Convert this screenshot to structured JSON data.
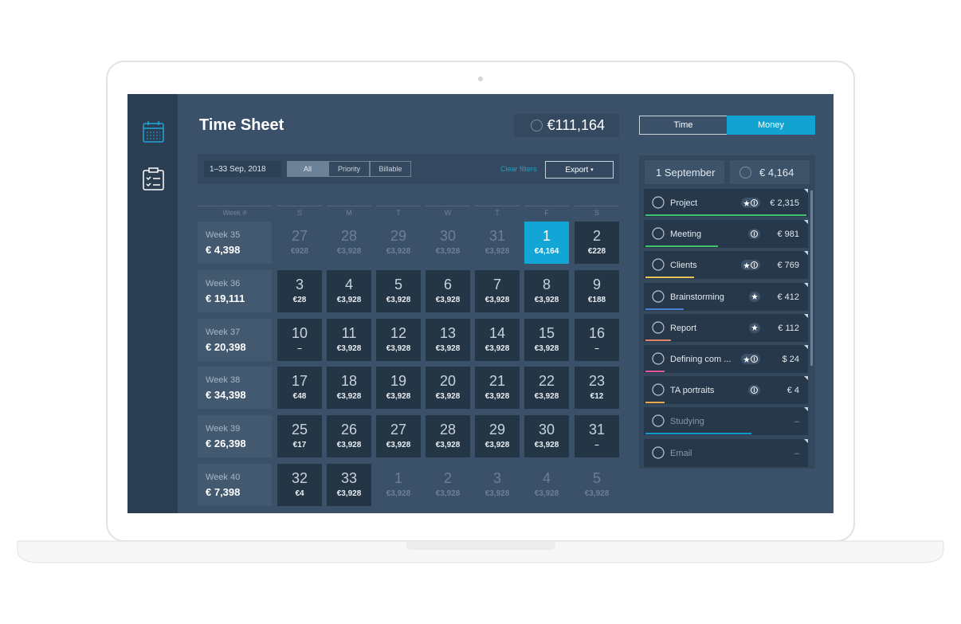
{
  "header": {
    "title": "Time Sheet",
    "total": "€111,164"
  },
  "toggle": {
    "options": [
      "Time",
      "Money"
    ],
    "active": 1
  },
  "filters": {
    "date": "1–33 Sep, 2018",
    "tabs": [
      "All",
      "Priority",
      "Billable"
    ],
    "active": 0,
    "clear": "Clear filters",
    "export": "Export"
  },
  "calendar": {
    "headers": [
      "Week #",
      "S",
      "M",
      "T",
      "W",
      "T",
      "F",
      "S"
    ],
    "selected": {
      "week": 0,
      "day": 5
    },
    "weeks": [
      {
        "label": "Week 35",
        "total": "€ 4,398",
        "days": [
          {
            "day": 27,
            "amount": "€928",
            "outside": true
          },
          {
            "day": 28,
            "amount": "€3,928",
            "outside": true
          },
          {
            "day": 29,
            "amount": "€3,928",
            "outside": true
          },
          {
            "day": 30,
            "amount": "€3,928",
            "outside": true
          },
          {
            "day": 31,
            "amount": "€3,928",
            "outside": true
          },
          {
            "day": 1,
            "amount": "€4,164"
          },
          {
            "day": 2,
            "amount": "€228"
          }
        ]
      },
      {
        "label": "Week 36",
        "total": "€ 19,111",
        "days": [
          {
            "day": 3,
            "amount": "€28"
          },
          {
            "day": 4,
            "amount": "€3,928"
          },
          {
            "day": 5,
            "amount": "€3,928"
          },
          {
            "day": 6,
            "amount": "€3,928"
          },
          {
            "day": 7,
            "amount": "€3,928"
          },
          {
            "day": 8,
            "amount": "€3,928"
          },
          {
            "day": 9,
            "amount": "€188"
          }
        ]
      },
      {
        "label": "Week 37",
        "total": "€ 20,398",
        "days": [
          {
            "day": 10,
            "amount": "–"
          },
          {
            "day": 11,
            "amount": "€3,928"
          },
          {
            "day": 12,
            "amount": "€3,928"
          },
          {
            "day": 13,
            "amount": "€3,928"
          },
          {
            "day": 14,
            "amount": "€3,928"
          },
          {
            "day": 15,
            "amount": "€3,928"
          },
          {
            "day": 16,
            "amount": "–"
          }
        ]
      },
      {
        "label": "Week 38",
        "total": "€ 34,398",
        "days": [
          {
            "day": 17,
            "amount": "€48"
          },
          {
            "day": 18,
            "amount": "€3,928"
          },
          {
            "day": 19,
            "amount": "€3,928"
          },
          {
            "day": 20,
            "amount": "€3,928"
          },
          {
            "day": 21,
            "amount": "€3,928"
          },
          {
            "day": 22,
            "amount": "€3,928"
          },
          {
            "day": 23,
            "amount": "€12"
          }
        ]
      },
      {
        "label": "Week 39",
        "total": "€ 26,398",
        "days": [
          {
            "day": 25,
            "amount": "€17"
          },
          {
            "day": 26,
            "amount": "€3,928"
          },
          {
            "day": 27,
            "amount": "€3,928"
          },
          {
            "day": 28,
            "amount": "€3,928"
          },
          {
            "day": 29,
            "amount": "€3,928"
          },
          {
            "day": 30,
            "amount": "€3,928"
          },
          {
            "day": 31,
            "amount": "–"
          }
        ]
      },
      {
        "label": "Week 40",
        "total": "€ 7,398",
        "days": [
          {
            "day": 32,
            "amount": "€4"
          },
          {
            "day": 33,
            "amount": "€3,928"
          },
          {
            "day": 1,
            "amount": "€3,928",
            "outside": true
          },
          {
            "day": 2,
            "amount": "€3,928",
            "outside": true
          },
          {
            "day": 3,
            "amount": "€3,928",
            "outside": true
          },
          {
            "day": 4,
            "amount": "€3,928",
            "outside": true
          },
          {
            "day": 5,
            "amount": "€3,928",
            "outside": true
          }
        ]
      }
    ]
  },
  "panel": {
    "date": "1 September",
    "total": "€ 4,164",
    "items": [
      {
        "name": "Project",
        "amount": "€ 2,315",
        "color": "#3ec46d",
        "bar": 100
      },
      {
        "name": "Meeting",
        "amount": "€ 981",
        "color": "#3ec46d",
        "bar": 45
      },
      {
        "name": "Clients",
        "amount": "€ 769",
        "color": "#e8c25a",
        "bar": 30
      },
      {
        "name": "Brainstorming",
        "amount": "€ 412",
        "color": "#4a7fd4",
        "bar": 24
      },
      {
        "name": "Report",
        "amount": "€ 112",
        "color": "#e8836b",
        "bar": 16
      },
      {
        "name": "Defining com ...",
        "amount": "$ 24",
        "color": "#e0569a",
        "bar": 12
      },
      {
        "name": "TA portraits",
        "amount": "€ 4",
        "color": "#e8a94a",
        "bar": 12
      },
      {
        "name": "Studying",
        "amount": "–",
        "color": "#1596d0",
        "bar": 66
      },
      {
        "name": "Email",
        "amount": "–",
        "color": "#1596d0",
        "bar": 0
      }
    ]
  }
}
